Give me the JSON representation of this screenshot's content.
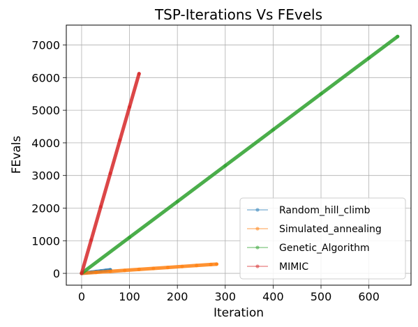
{
  "chart_data": {
    "type": "line",
    "title": "TSP-Iterations Vs FEvels",
    "xlabel": "Iteration",
    "ylabel": "FEvals",
    "xlim": [
      -32,
      688
    ],
    "ylim": [
      -362,
      7610
    ],
    "xticks": [
      0,
      100,
      200,
      300,
      400,
      500,
      600
    ],
    "yticks": [
      0,
      1000,
      2000,
      3000,
      4000,
      5000,
      6000,
      7000
    ],
    "grid": true,
    "legend_position": "lower right",
    "series": [
      {
        "name": "Random_hill_climb",
        "color": "#1f77b4",
        "x": [
          0,
          10,
          20,
          30,
          40,
          50,
          60
        ],
        "y": [
          1,
          18,
          36,
          54,
          72,
          90,
          108
        ]
      },
      {
        "name": "Simulated_annealing",
        "color": "#ff7f0e",
        "x": [
          0,
          30,
          60,
          90,
          120,
          150,
          180,
          210,
          240,
          270,
          282
        ],
        "y": [
          1,
          31,
          61,
          91,
          121,
          151,
          181,
          211,
          241,
          271,
          283
        ]
      },
      {
        "name": "Genetic_Algorithm",
        "color": "#2ca02c",
        "x": [
          0,
          100,
          200,
          300,
          400,
          500,
          600,
          660
        ],
        "y": [
          1,
          1101,
          2201,
          3301,
          4401,
          5501,
          6601,
          7261
        ]
      },
      {
        "name": "MIMIC",
        "color": "#d62728",
        "x": [
          0,
          20,
          40,
          60,
          80,
          100,
          120
        ],
        "y": [
          1,
          1021,
          2041,
          3061,
          4081,
          5101,
          6121
        ]
      }
    ]
  }
}
